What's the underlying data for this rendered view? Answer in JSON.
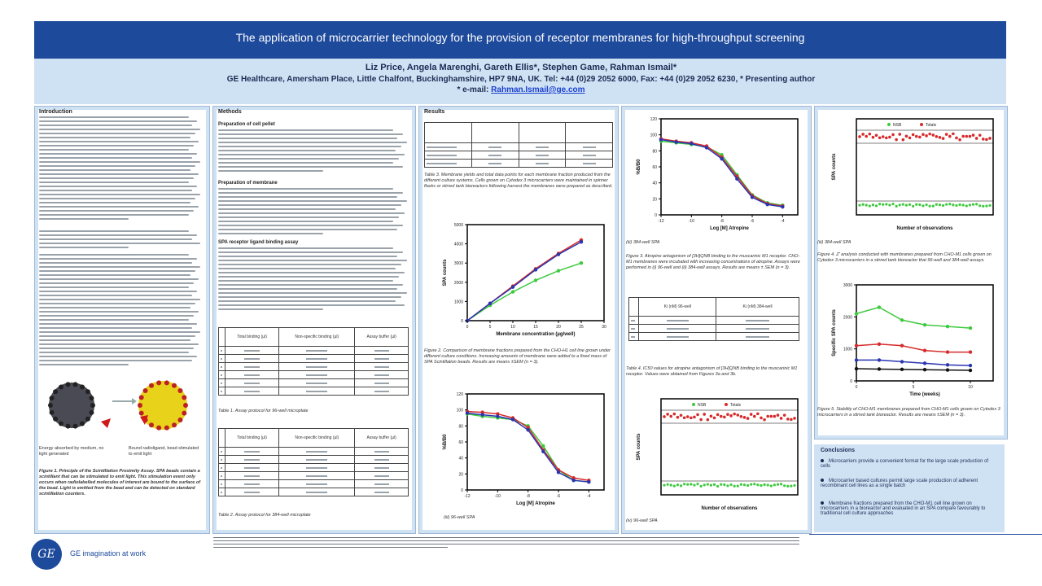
{
  "header": {
    "title": "The application of microcarrier technology for the provision of receptor membranes for high-throughput screening",
    "authors": "Liz Price, Angela Marenghi, Gareth Ellis*, Stephen Game, Rahman Ismail*",
    "affiliation": "GE Healthcare, Amersham Place, Little Chalfont, Buckinghamshire, HP7 9NA, UK. Tel: +44 (0)29 2052 6000, Fax: +44 (0)29 2052 6230, * Presenting author",
    "email_label": "* e-mail:",
    "email": "Rahman.Ismail@ge.com"
  },
  "col1": {
    "heading": "Introduction",
    "image_caption_left": "Energy absorbed by medium, no light generated",
    "image_caption_right": "Bound radioligand, bead stimulated to emit light",
    "figure_caption": "Figure 1. Principle of the Scintillation Proximity Assay. SPA beads contain a scintillant that can be stimulated to emit light. This stimulation event only occurs when radiolabelled molecules of interest are bound to the surface of the bead. Light is emitted from the bead and can be detected on standard scintillation counters."
  },
  "col2": {
    "heading": "Methods",
    "sub1": "Preparation of cell pellet",
    "sub2": "Preparation of membrane",
    "sub3": "SPA receptor ligand binding assay",
    "table1": {
      "headers": [
        "",
        "Total binding (µl)",
        "Non-specific binding (µl)",
        "Assay buffer (µl)"
      ],
      "caption": "Table 1. Assay protocol for 96-well microplate"
    },
    "table2": {
      "headers": [
        "",
        "Total binding (µl)",
        "Non-specific binding (µl)",
        "Assay buffer (µl)"
      ],
      "caption": "Table 2. Assay protocol for 384-well microplate"
    }
  },
  "col3": {
    "heading": "Results",
    "table3": {
      "caption": "Table 3. Membrane yields and total data points for each membrane fraction produced from the different culture systems. Cells grown on Cytodex 3 microcarriers were maintained in spinner flasks or stirred tank bioreactors following harvest the membranes were prepared as described."
    },
    "fig2_caption": "Figure 2. Comparison of membrane fractions prepared from the CHO-H1 cell line grown under different culture conditions. Increasing amounts of membrane were added to a fixed mass of SPA Scintillation beads. Results are means ±SEM (n = 3).",
    "fig2_xlabel": "Membrane concentration (µg/well)",
    "fig2_ylabel": "SPA counts",
    "fig3_xlabel": "Log [M] Atropine",
    "fig3_ylabel": "%B/B0",
    "fig3_sub": "(iii) 96-well SPA"
  },
  "col4": {
    "fig_top_xlabel": "Log [M] Atropine",
    "fig_top_ylabel": "%B/B0",
    "fig_top_sub": "(iii) 384-well SPA",
    "fig3_caption": "Figure 3. Atropine antagonism of [3H]QNB binding to the muscarinic M1 receptor. CHO-M1 membranes were incubated with increasing concentrations of atropine. Assays were performed in (i) 96-well and (ii) 384-well assays. Results are means ± SEM (n = 3).",
    "table4": {
      "headers": [
        "",
        "Ki (nM) 96-well",
        "Ki (nM) 384-well"
      ],
      "caption": "Table 4. IC50 values for atropine antagonism of [3H]QNB binding to the muscarinic M1 receptor. Values were obtained from Figures 3a and 3b."
    },
    "chart_bottom_legend": [
      "NSB",
      "Totals"
    ],
    "chart_bottom_xlabel": "Number of observations",
    "chart_bottom_ylabel": "SPA counts",
    "chart_bottom_sub": "(iv) 96-well SPA"
  },
  "col5": {
    "chart_top_legend": [
      "NSB",
      "Totals"
    ],
    "chart_top_xlabel": "Number of observations",
    "chart_top_ylabel": "SPA counts",
    "chart_top_sub": "(iii) 384-well SPA",
    "fig4_caption": "Figure 4. Z' analysis conducted with membranes prepared from CHO-M1 cells grown on Cytodex 3 microcarriers in a stirred tank bioreactor that 96-well and 384-well assays.",
    "fig5_xlabel": "Time (weeks)",
    "fig5_ylabel": "Specific SPA counts",
    "fig5_caption": "Figure 5. Stability of CHO-M1 membranes prepared from CHO-M1 cells grown on Cytodex 3 microcarriers in a stirred tank bioreactor. Results are means ±SEM (n = 3)."
  },
  "conclusions": {
    "heading": "Conclusions",
    "items": [
      "Microcarriers provide a convenient format for the large scale production of cells",
      "Microcarrier based cultures permit large scale production of adherent recombinant cell lines as a single batch",
      "Membrane fractions prepared from the CHO-M1 cell line grown on microcarriers in a bioreactor and evaluated in an SPA compare favourably to traditional cell culture approaches"
    ]
  },
  "footer": {
    "logo_text": "GE",
    "tagline": "GE imagination at work"
  },
  "colors": {
    "title_bar": "#1e4a9c",
    "panel": "#cfe2f3",
    "series_green": "#3ec93e",
    "series_red": "#d72b2b",
    "series_blue": "#2a35b0"
  },
  "chart_data": [
    {
      "type": "line",
      "xlabel": "Membrane concentration (µg/well)",
      "ylabel": "SPA counts",
      "x": [
        0,
        5,
        10,
        15,
        20,
        25
      ],
      "series": [
        {
          "values": [
            0,
            800,
            1500,
            2100,
            2600,
            3000
          ]
        },
        {
          "values": [
            0,
            900,
            1800,
            2700,
            3500,
            4200
          ]
        },
        {
          "values": [
            0,
            900,
            1750,
            2650,
            3450,
            4100
          ]
        }
      ]
    },
    {
      "type": "line",
      "xlabel": "Log [M] Atropine",
      "ylabel": "%B/B0",
      "x": [
        -12,
        -11,
        -10,
        -9,
        -8,
        -7,
        -6,
        -5,
        -4
      ],
      "series": [
        {
          "values": [
            95,
            92,
            90,
            88,
            80,
            55,
            25,
            12,
            10
          ]
        },
        {
          "values": [
            98,
            97,
            95,
            90,
            78,
            50,
            25,
            15,
            12
          ]
        },
        {
          "values": [
            96,
            94,
            92,
            88,
            75,
            48,
            22,
            12,
            10
          ]
        }
      ]
    },
    {
      "type": "line",
      "xlabel": "Log [M] Atropine",
      "ylabel": "%B/B0",
      "x": [
        -12,
        -11,
        -10,
        -9,
        -8,
        -7,
        -6,
        -5,
        -4
      ],
      "series": [
        {
          "values": [
            92,
            90,
            88,
            85,
            75,
            50,
            25,
            15,
            12
          ]
        },
        {
          "values": [
            95,
            92,
            90,
            86,
            72,
            48,
            24,
            14,
            11
          ]
        },
        {
          "values": [
            94,
            91,
            89,
            84,
            70,
            45,
            22,
            13,
            10
          ]
        }
      ]
    },
    {
      "type": "line",
      "xlabel": "Time (weeks)",
      "ylabel": "Specific SPA counts",
      "x": [
        0,
        2,
        4,
        6,
        8,
        10
      ],
      "series": [
        {
          "values": [
            2100,
            2300,
            1900,
            1750,
            1700,
            1650
          ]
        },
        {
          "values": [
            1100,
            1150,
            1100,
            950,
            900,
            900
          ]
        },
        {
          "values": [
            650,
            650,
            600,
            550,
            500,
            480
          ]
        },
        {
          "values": [
            380,
            370,
            360,
            350,
            340,
            330
          ]
        }
      ]
    }
  ]
}
